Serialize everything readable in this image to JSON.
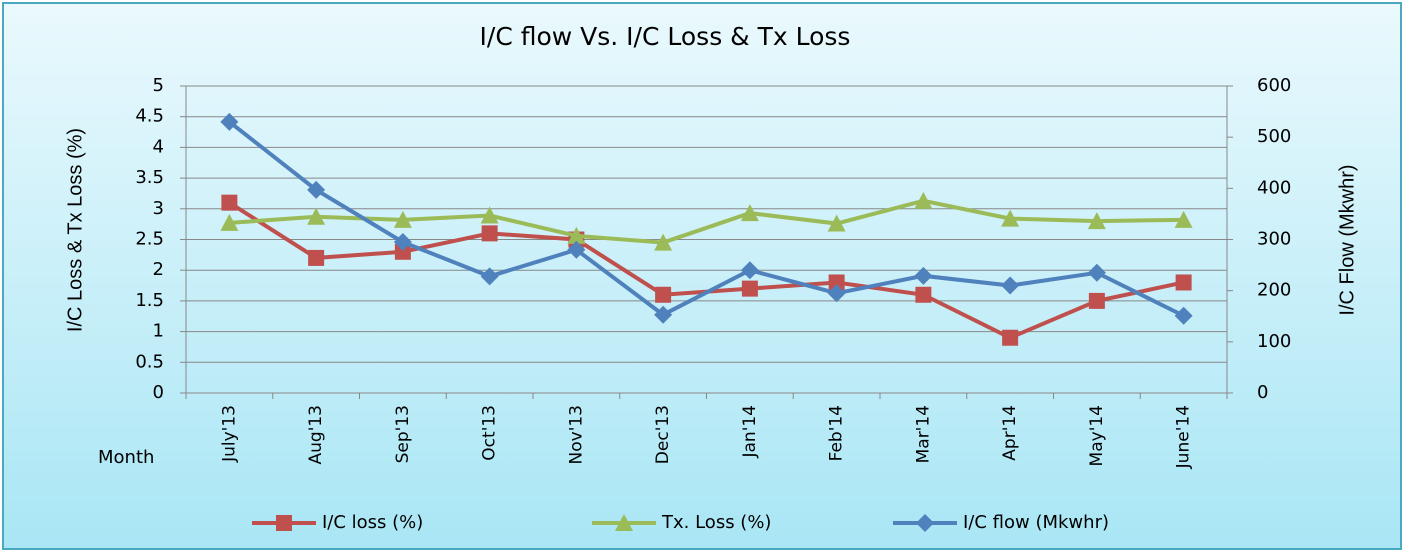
{
  "chart_data": {
    "type": "line",
    "title": "I/C flow Vs. I/C Loss & Tx Loss",
    "xlabel": "Month",
    "ylabel": "I/C Loss & Tx Loss (%)",
    "y2label": "I/C Flow  (Mkwhr)",
    "categories": [
      "July'13",
      "Aug'13",
      "Sep'13",
      "Oct'13",
      "Nov'13",
      "Dec'13",
      "Jan'14",
      "Feb'14",
      "Mar'14",
      "Apr'14",
      "May'14",
      "June'14"
    ],
    "series": [
      {
        "name": "I/C loss (%)",
        "color": "#c0504d",
        "marker": "square",
        "values": [
          3.1,
          2.2,
          2.3,
          2.6,
          2.5,
          1.6,
          1.7,
          1.8,
          1.6,
          0.9,
          1.5,
          1.8
        ]
      },
      {
        "name": "Tx. Loss (%)",
        "color": "#9bbb59",
        "marker": "triangle",
        "values": [
          2.77,
          2.87,
          2.82,
          2.89,
          2.56,
          2.45,
          2.93,
          2.76,
          3.13,
          2.84,
          2.8,
          2.82
        ]
      },
      {
        "name": "I/C flow (Mkwhr)",
        "color": "#4f81bd",
        "marker": "diamond",
        "axis": "y2",
        "values": [
          530,
          397,
          295,
          228,
          280,
          153,
          240,
          195,
          229,
          210,
          235,
          151
        ]
      }
    ],
    "ylim": [
      0,
      5
    ],
    "yticks": [
      0,
      0.5,
      1,
      1.5,
      2,
      2.5,
      3,
      3.5,
      4,
      4.5,
      5
    ],
    "y2lim": [
      0,
      600
    ],
    "y2ticks": [
      0,
      100,
      200,
      300,
      400,
      500,
      600
    ],
    "grid": true,
    "legend": "bottom"
  }
}
